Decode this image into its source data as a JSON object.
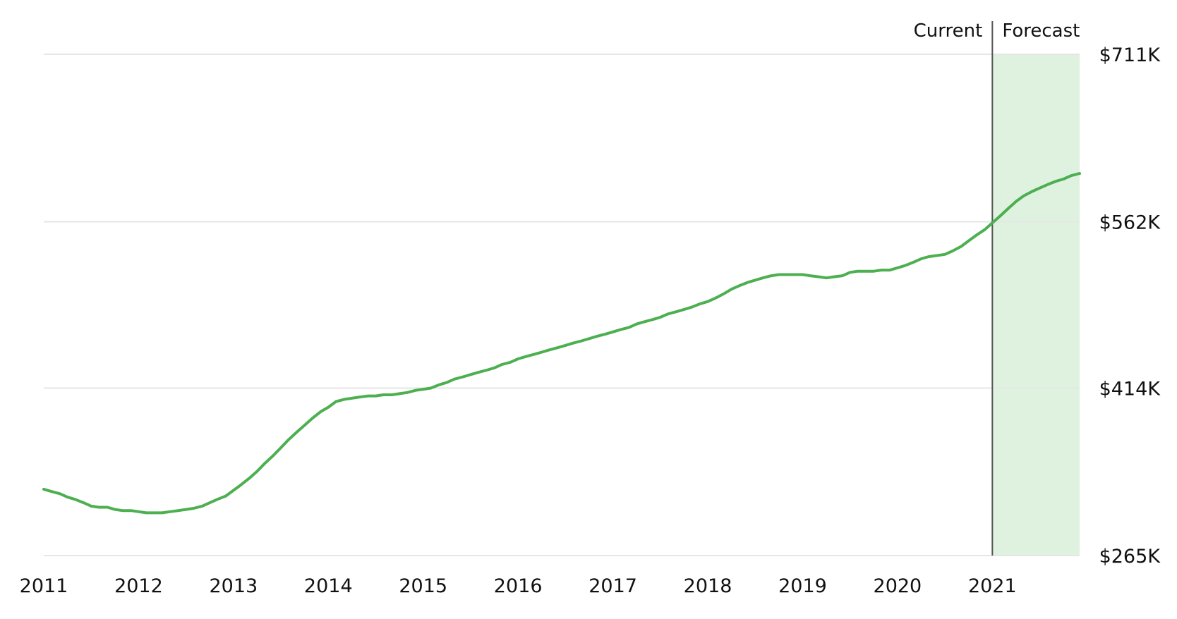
{
  "chart_data": {
    "type": "line",
    "title": "",
    "xlabel": "",
    "ylabel": "",
    "x_ticks": [
      "2011",
      "2012",
      "2013",
      "2014",
      "2015",
      "2016",
      "2017",
      "2018",
      "2019",
      "2020",
      "2021"
    ],
    "y_ticks": [
      {
        "value": 265,
        "label": "$265K"
      },
      {
        "value": 414,
        "label": "$414K"
      },
      {
        "value": 562,
        "label": "$562K"
      },
      {
        "value": 711,
        "label": "$711K"
      }
    ],
    "xlim": [
      2011.0,
      2021.92
    ],
    "ylim": [
      265,
      711
    ],
    "grid": true,
    "y_axis_position": "right",
    "regions": [
      {
        "name": "Current",
        "start": 2011.0,
        "end": 2021.0
      },
      {
        "name": "Forecast",
        "start": 2021.0,
        "end": 2021.92
      }
    ],
    "divider_x": 2021.0,
    "colors": {
      "line": "#4caf50",
      "forecast_fill": "#dff2df",
      "divider": "#555555",
      "grid": "#e6e6e6",
      "text": "#111111"
    },
    "series": [
      {
        "x": [
          2011.0,
          2011.08,
          2011.17,
          2011.25,
          2011.33,
          2011.42,
          2011.5,
          2011.58,
          2011.67,
          2011.75,
          2011.83,
          2011.92,
          2012.0,
          2012.08,
          2012.17,
          2012.25,
          2012.33,
          2012.42,
          2012.5,
          2012.58,
          2012.67,
          2012.75,
          2012.83,
          2012.92,
          2013.0,
          2013.08,
          2013.17,
          2013.25,
          2013.33,
          2013.42,
          2013.5,
          2013.58,
          2013.67,
          2013.75,
          2013.83,
          2013.92,
          2014.0,
          2014.08,
          2014.17,
          2014.25,
          2014.33,
          2014.42,
          2014.5,
          2014.58,
          2014.67,
          2014.75,
          2014.83,
          2014.92,
          2015.0,
          2015.08,
          2015.17,
          2015.25,
          2015.33,
          2015.42,
          2015.5,
          2015.58,
          2015.67,
          2015.75,
          2015.83,
          2015.92,
          2016.0,
          2016.08,
          2016.17,
          2016.25,
          2016.33,
          2016.42,
          2016.5,
          2016.58,
          2016.67,
          2016.75,
          2016.83,
          2016.92,
          2017.0,
          2017.08,
          2017.17,
          2017.25,
          2017.33,
          2017.42,
          2017.5,
          2017.58,
          2017.67,
          2017.75,
          2017.83,
          2017.92,
          2018.0,
          2018.08,
          2018.17,
          2018.25,
          2018.33,
          2018.42,
          2018.5,
          2018.58,
          2018.67,
          2018.75,
          2018.83,
          2018.92,
          2019.0,
          2019.08,
          2019.17,
          2019.25,
          2019.33,
          2019.42,
          2019.5,
          2019.58,
          2019.67,
          2019.75,
          2019.83,
          2019.92,
          2020.0,
          2020.08,
          2020.17,
          2020.25,
          2020.33,
          2020.42,
          2020.5,
          2020.58,
          2020.67,
          2020.75,
          2020.83,
          2020.92,
          2021.0,
          2021.08,
          2021.17,
          2021.25,
          2021.33,
          2021.42,
          2021.5,
          2021.58,
          2021.67,
          2021.75,
          2021.83,
          2021.92
        ],
        "values": [
          324,
          322,
          320,
          317,
          315,
          312,
          309,
          308,
          308,
          306,
          305,
          305,
          304,
          303,
          303,
          303,
          304,
          305,
          306,
          307,
          309,
          312,
          315,
          318,
          323,
          328,
          334,
          340,
          347,
          354,
          361,
          368,
          375,
          381,
          387,
          393,
          397,
          402,
          404,
          405,
          406,
          407,
          407,
          408,
          408,
          409,
          410,
          412,
          413,
          414,
          417,
          419,
          422,
          424,
          426,
          428,
          430,
          432,
          435,
          437,
          440,
          442,
          444,
          446,
          448,
          450,
          452,
          454,
          456,
          458,
          460,
          462,
          464,
          466,
          468,
          471,
          473,
          475,
          477,
          480,
          482,
          484,
          486,
          489,
          491,
          494,
          498,
          502,
          505,
          508,
          510,
          512,
          514,
          515,
          515,
          515,
          515,
          514,
          513,
          512,
          513,
          514,
          517,
          518,
          518,
          518,
          519,
          519,
          521,
          523,
          526,
          529,
          531,
          532,
          533,
          536,
          540,
          545,
          550,
          555,
          561,
          567,
          574,
          580,
          585,
          589,
          592,
          595,
          598,
          600,
          603,
          605
        ]
      }
    ]
  }
}
